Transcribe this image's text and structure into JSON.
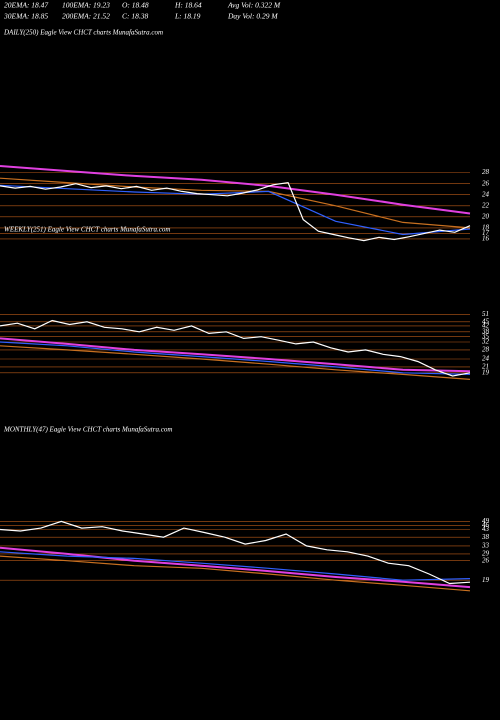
{
  "header": {
    "row1": [
      "20EMA: 18.47",
      "100EMA: 19.23",
      "O: 18.48",
      "H: 18.64",
      "Avg Vol: 0.322  M"
    ],
    "row2": [
      "30EMA: 18.85",
      "200EMA: 21.52",
      "C: 18.38",
      "L: 18.19",
      "Day Vol: 0.29 M"
    ]
  },
  "chart_data": [
    {
      "type": "line",
      "title": "DAILY(250) Eagle  View  CHCT charts MunafaSutra.com",
      "log": false,
      "ylim": [
        14,
        52
      ],
      "yticks": [
        28,
        26,
        24,
        22,
        20,
        18,
        17,
        16
      ],
      "series": [
        {
          "color": "#e040e0",
          "values": [
            29.2,
            28.3,
            27.4,
            26.7,
            25.6,
            24.0,
            22.2,
            20.6
          ]
        },
        {
          "color": "#c87020",
          "values": [
            27.0,
            26.2,
            25.4,
            24.8,
            24.6,
            22.0,
            19.0,
            18.0
          ]
        },
        {
          "color": "#3060ff",
          "values": [
            25.7,
            25.1,
            24.5,
            24.1,
            24.6,
            19.2,
            16.8,
            17.8
          ]
        },
        {
          "color": "#ffffff",
          "values": [
            25.6,
            25.2,
            25.5,
            25.0,
            25.4,
            26.0,
            25.3,
            25.6,
            25.1,
            25.5,
            24.8,
            25.2,
            24.6,
            24.2,
            24.0,
            23.8,
            24.3,
            24.9,
            25.8,
            26.2,
            19.5,
            17.4,
            16.8,
            16.2,
            15.7,
            16.3,
            15.9,
            16.4,
            17.0,
            17.6,
            17.2,
            18.4
          ]
        }
      ]
    },
    {
      "type": "line",
      "title": "WEEKLY(251) Eagle  View  CHCT charts MunafaSutra.com",
      "log": true,
      "ylim": [
        12,
        128
      ],
      "yticks": [
        51,
        45,
        42,
        38,
        35,
        32,
        28,
        24,
        21,
        19
      ],
      "series": [
        {
          "color": "#e040e0",
          "values": [
            34,
            31,
            28,
            26,
            24,
            22,
            20,
            19.5
          ]
        },
        {
          "color": "#c87020",
          "values": [
            30,
            28,
            26,
            24,
            22,
            20,
            18.5,
            17
          ]
        },
        {
          "color": "#3060ff",
          "values": [
            32,
            30,
            27,
            25,
            23,
            21,
            19,
            18.5
          ]
        },
        {
          "color": "#ffffff",
          "values": [
            42,
            44,
            40,
            46,
            43,
            45,
            41,
            40,
            38,
            41,
            39,
            42,
            37,
            38,
            34,
            35,
            33,
            31,
            32,
            29,
            27,
            28,
            26,
            25,
            23,
            20,
            18,
            19
          ]
        }
      ]
    },
    {
      "type": "line",
      "title": "MONTHLY(47) Eagle  View  CHCT charts MunafaSutra.com",
      "log": true,
      "ylim": [
        10,
        182
      ],
      "yticks": [
        49,
        46,
        43,
        38,
        33,
        29,
        26,
        19
      ],
      "series": [
        {
          "color": "#e040e0",
          "values": [
            32,
            29,
            26,
            24,
            22,
            20,
            18.5,
            17
          ]
        },
        {
          "color": "#c87020",
          "values": [
            28,
            26,
            24,
            23,
            21,
            19,
            17.5,
            16
          ]
        },
        {
          "color": "#3060ff",
          "values": [
            30,
            28,
            27,
            25,
            23,
            21,
            19,
            19.5
          ]
        },
        {
          "color": "#ffffff",
          "values": [
            43,
            42,
            44,
            49,
            44,
            45,
            42,
            40,
            38,
            44,
            41,
            38,
            34,
            36,
            40,
            33,
            31,
            30,
            28,
            25,
            24,
            21,
            18,
            18.4
          ]
        }
      ]
    }
  ]
}
